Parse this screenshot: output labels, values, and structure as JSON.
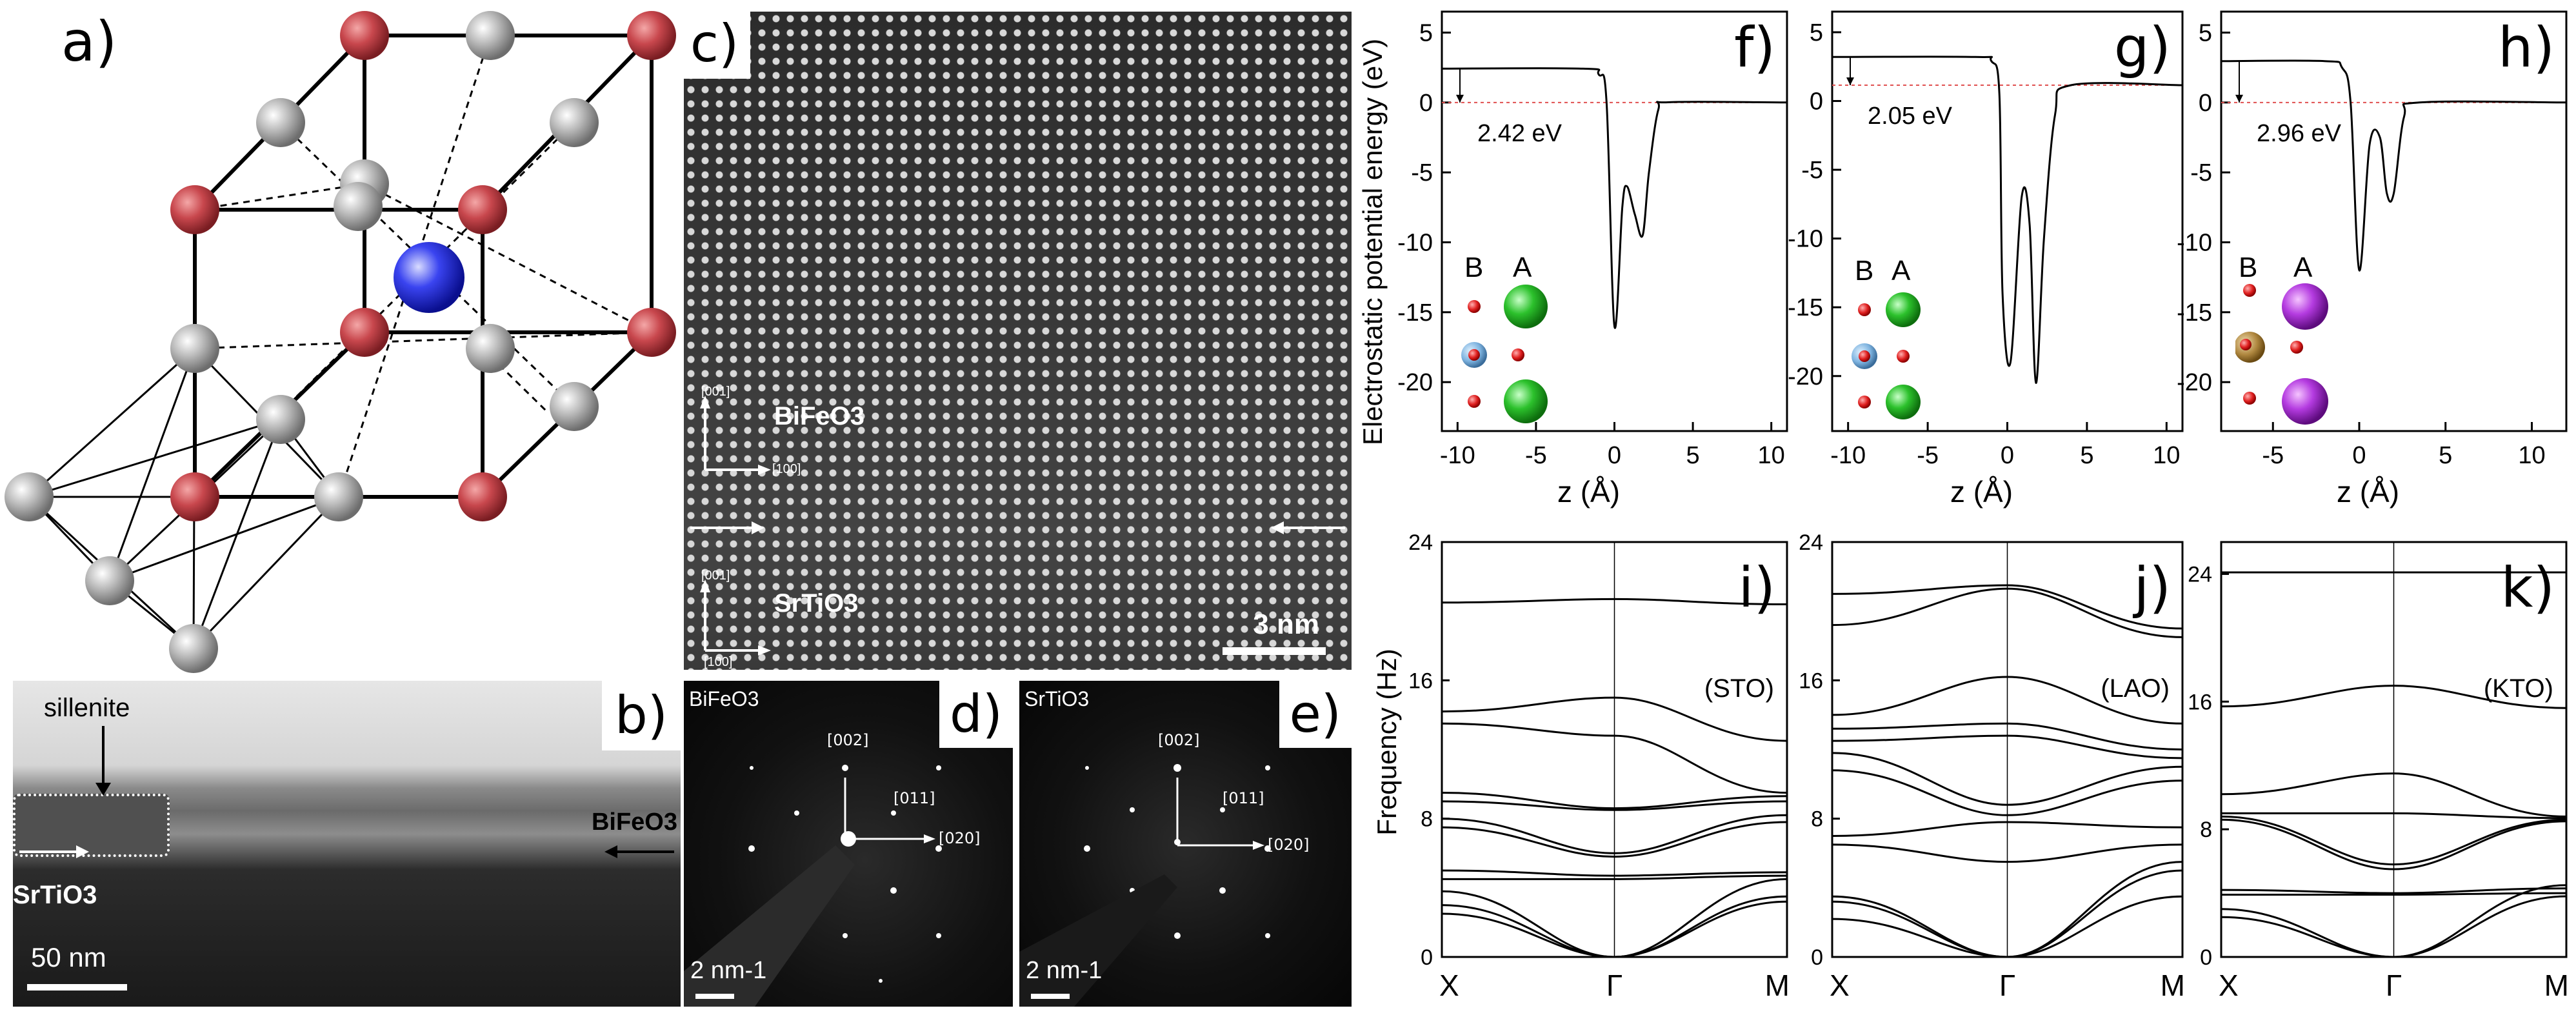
{
  "figure": {
    "panel_a": {
      "label": "a)"
    },
    "panel_b": {
      "label": "b)",
      "annotations": {
        "sillenite": "sillenite",
        "bfo": "BiFeO3",
        "sto": "SrTiO3"
      },
      "scalebar": "50 nm"
    },
    "panel_c": {
      "label": "c)",
      "axis_top": {
        "vertical": "[001]",
        "horizontal": "[100]"
      },
      "axis_bottom": {
        "vertical": "[001]",
        "horizontal": "[100]"
      },
      "layer_top": "BiFeO3",
      "layer_bottom": "SrTiO3",
      "scalebar": "3 nm"
    },
    "panel_d": {
      "label": "d)",
      "material": "BiFeO3",
      "reflections": [
        "[002]",
        "[011]",
        "[020]"
      ],
      "scalebar": "2 nm-1"
    },
    "panel_e": {
      "label": "e)",
      "material": "SrTiO3",
      "reflections": [
        "[002]",
        "[011]",
        "[020]"
      ],
      "scalebar": "2 nm-1"
    },
    "potential_ylabel": "Electrostatic potential energy (eV)",
    "frequency_ylabel": "Frequency (Hz)",
    "inset_labels": {
      "B": "B",
      "A": "A"
    }
  },
  "chart_data": [
    {
      "panel": "f)",
      "type": "line",
      "annotation": "2.42 eV",
      "xlabel": "z (Å)",
      "xlim": [
        -11,
        11
      ],
      "xticks": [
        -10,
        -5,
        0,
        5,
        10
      ],
      "yticks": [
        5,
        0,
        -5,
        -10,
        -15,
        -20
      ],
      "ylim": [
        -23.5,
        6.5
      ],
      "series": [
        {
          "x": [
            -11,
            -2,
            -1,
            -0.5,
            0,
            0.5,
            0.8,
            1.3,
            1.8,
            2.2,
            2.8,
            3.5,
            11
          ],
          "y": [
            2.42,
            2.42,
            2.0,
            0,
            -16,
            -7.5,
            -6,
            -8.0,
            -9.5,
            -5,
            -0.5,
            0.02,
            0
          ]
        }
      ]
    },
    {
      "panel": "g)",
      "type": "line",
      "annotation": "2.05 eV",
      "xlabel": "z (Å)",
      "xlim": [
        -11,
        11
      ],
      "xticks": [
        -10,
        -5,
        0,
        5,
        10
      ],
      "yticks": [
        5,
        0,
        -5,
        -10,
        -15,
        -20
      ],
      "ylim": [
        -24,
        6.5
      ],
      "series": [
        {
          "x": [
            -11,
            -2,
            -1,
            -0.5,
            -0.3,
            0.2,
            0.9,
            1.4,
            1.8,
            2.3,
            3,
            4,
            11
          ],
          "y": [
            3.2,
            3.2,
            2.9,
            0.5,
            -14,
            -19,
            -7,
            -9,
            -20.5,
            -10,
            -1,
            1.15,
            1.15
          ]
        }
      ]
    },
    {
      "panel": "h)",
      "type": "line",
      "annotation": "2.96 eV",
      "xlabel": "z (Å)",
      "xlim": [
        -8,
        12
      ],
      "xticks": [
        -5,
        0,
        5,
        10
      ],
      "yticks": [
        5,
        0,
        -5,
        -10,
        -15,
        -20
      ],
      "ylim": [
        -23.5,
        6.5
      ],
      "series": [
        {
          "x": [
            -8,
            -2,
            -1,
            -0.5,
            0,
            0.6,
            1.2,
            1.6,
            2.0,
            2.6,
            3.5,
            12
          ],
          "y": [
            2.96,
            2.96,
            2.5,
            0,
            -12,
            -3,
            -2.5,
            -6.5,
            -6.5,
            -1,
            0,
            0
          ]
        }
      ]
    },
    {
      "panel": "i)",
      "type": "line",
      "note": "(STO)",
      "categories": [
        "X",
        "Γ",
        "M"
      ],
      "ylim": [
        0,
        24
      ],
      "yticks": [
        0,
        8,
        16,
        24
      ],
      "series": [
        {
          "values": [
            20.5,
            20.7,
            20.4
          ]
        },
        {
          "values": [
            14.2,
            15.0,
            12.5
          ]
        },
        {
          "values": [
            13.5,
            12.8,
            9.5
          ]
        },
        {
          "values": [
            9.5,
            8.6,
            9.3
          ]
        },
        {
          "values": [
            9.0,
            8.5,
            9.0
          ]
        },
        {
          "values": [
            8.0,
            6.0,
            8.2
          ]
        },
        {
          "values": [
            7.5,
            5.8,
            7.8
          ]
        },
        {
          "values": [
            5.0,
            4.7,
            4.9
          ]
        },
        {
          "values": [
            4.5,
            4.5,
            4.7
          ]
        },
        {
          "values": [
            3.8,
            0,
            4.5
          ]
        },
        {
          "values": [
            3.0,
            0,
            3.5
          ]
        },
        {
          "values": [
            2.5,
            0,
            3.2
          ]
        }
      ]
    },
    {
      "panel": "j)",
      "type": "line",
      "note": "(LAO)",
      "categories": [
        "X",
        "Γ",
        "M"
      ],
      "ylim": [
        0,
        24
      ],
      "yticks": [
        0,
        8,
        16,
        24
      ],
      "series": [
        {
          "values": [
            21.0,
            21.5,
            19.0
          ]
        },
        {
          "values": [
            19.2,
            21.3,
            18.5
          ]
        },
        {
          "values": [
            14.0,
            16.2,
            13.5
          ]
        },
        {
          "values": [
            13.2,
            13.5,
            12.0
          ]
        },
        {
          "values": [
            12.5,
            12.8,
            11.5
          ]
        },
        {
          "values": [
            11.8,
            8.8,
            11.0
          ]
        },
        {
          "values": [
            10.8,
            8.2,
            10.2
          ]
        },
        {
          "values": [
            7.0,
            7.8,
            7.5
          ]
        },
        {
          "values": [
            6.5,
            5.5,
            6.5
          ]
        },
        {
          "values": [
            3.5,
            0,
            5.5
          ]
        },
        {
          "values": [
            3.2,
            0,
            5.0
          ]
        },
        {
          "values": [
            2.2,
            0,
            3.5
          ]
        }
      ]
    },
    {
      "panel": "k)",
      "type": "line",
      "note": "(KTO)",
      "categories": [
        "X",
        "Γ",
        "M"
      ],
      "ylim": [
        0,
        26
      ],
      "yticks": [
        0,
        8,
        16,
        24
      ],
      "series": [
        {
          "values": [
            24.1,
            24.1,
            24.1
          ]
        },
        {
          "values": [
            15.7,
            17.0,
            15.6
          ]
        },
        {
          "values": [
            10.2,
            11.5,
            8.8
          ]
        },
        {
          "values": [
            9.0,
            9.0,
            8.7
          ]
        },
        {
          "values": [
            8.8,
            5.8,
            8.6
          ]
        },
        {
          "values": [
            8.6,
            5.5,
            8.5
          ]
        },
        {
          "values": [
            4.2,
            4.0,
            4.3
          ]
        },
        {
          "values": [
            3.9,
            3.9,
            4.0
          ]
        },
        {
          "values": [
            3.0,
            0,
            4.5
          ]
        },
        {
          "values": [
            2.5,
            0,
            3.8
          ]
        }
      ]
    }
  ]
}
